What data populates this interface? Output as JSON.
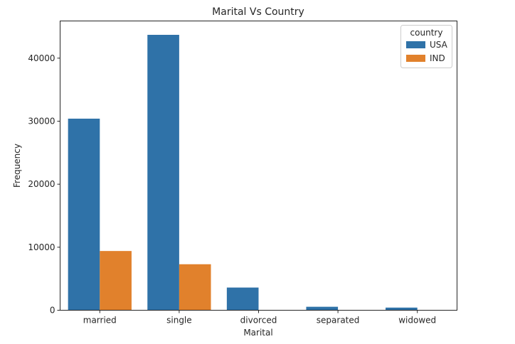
{
  "chart_data": {
    "type": "bar",
    "title": "Marital Vs Country",
    "xlabel": "Marital",
    "ylabel": "Frequency",
    "categories": [
      "married",
      "single",
      "divorced",
      "separated",
      "widowed"
    ],
    "series": [
      {
        "name": "USA",
        "color": "#2f72a8",
        "values": [
          30400,
          43700,
          3600,
          550,
          420
        ]
      },
      {
        "name": "IND",
        "color": "#e1812c",
        "values": [
          9400,
          7300,
          0,
          0,
          0
        ]
      }
    ],
    "ylim": [
      0,
      45900
    ],
    "yticks": [
      0,
      10000,
      20000,
      30000,
      40000
    ],
    "grid": false,
    "legend": {
      "title": "country",
      "position": "top-right"
    }
  }
}
